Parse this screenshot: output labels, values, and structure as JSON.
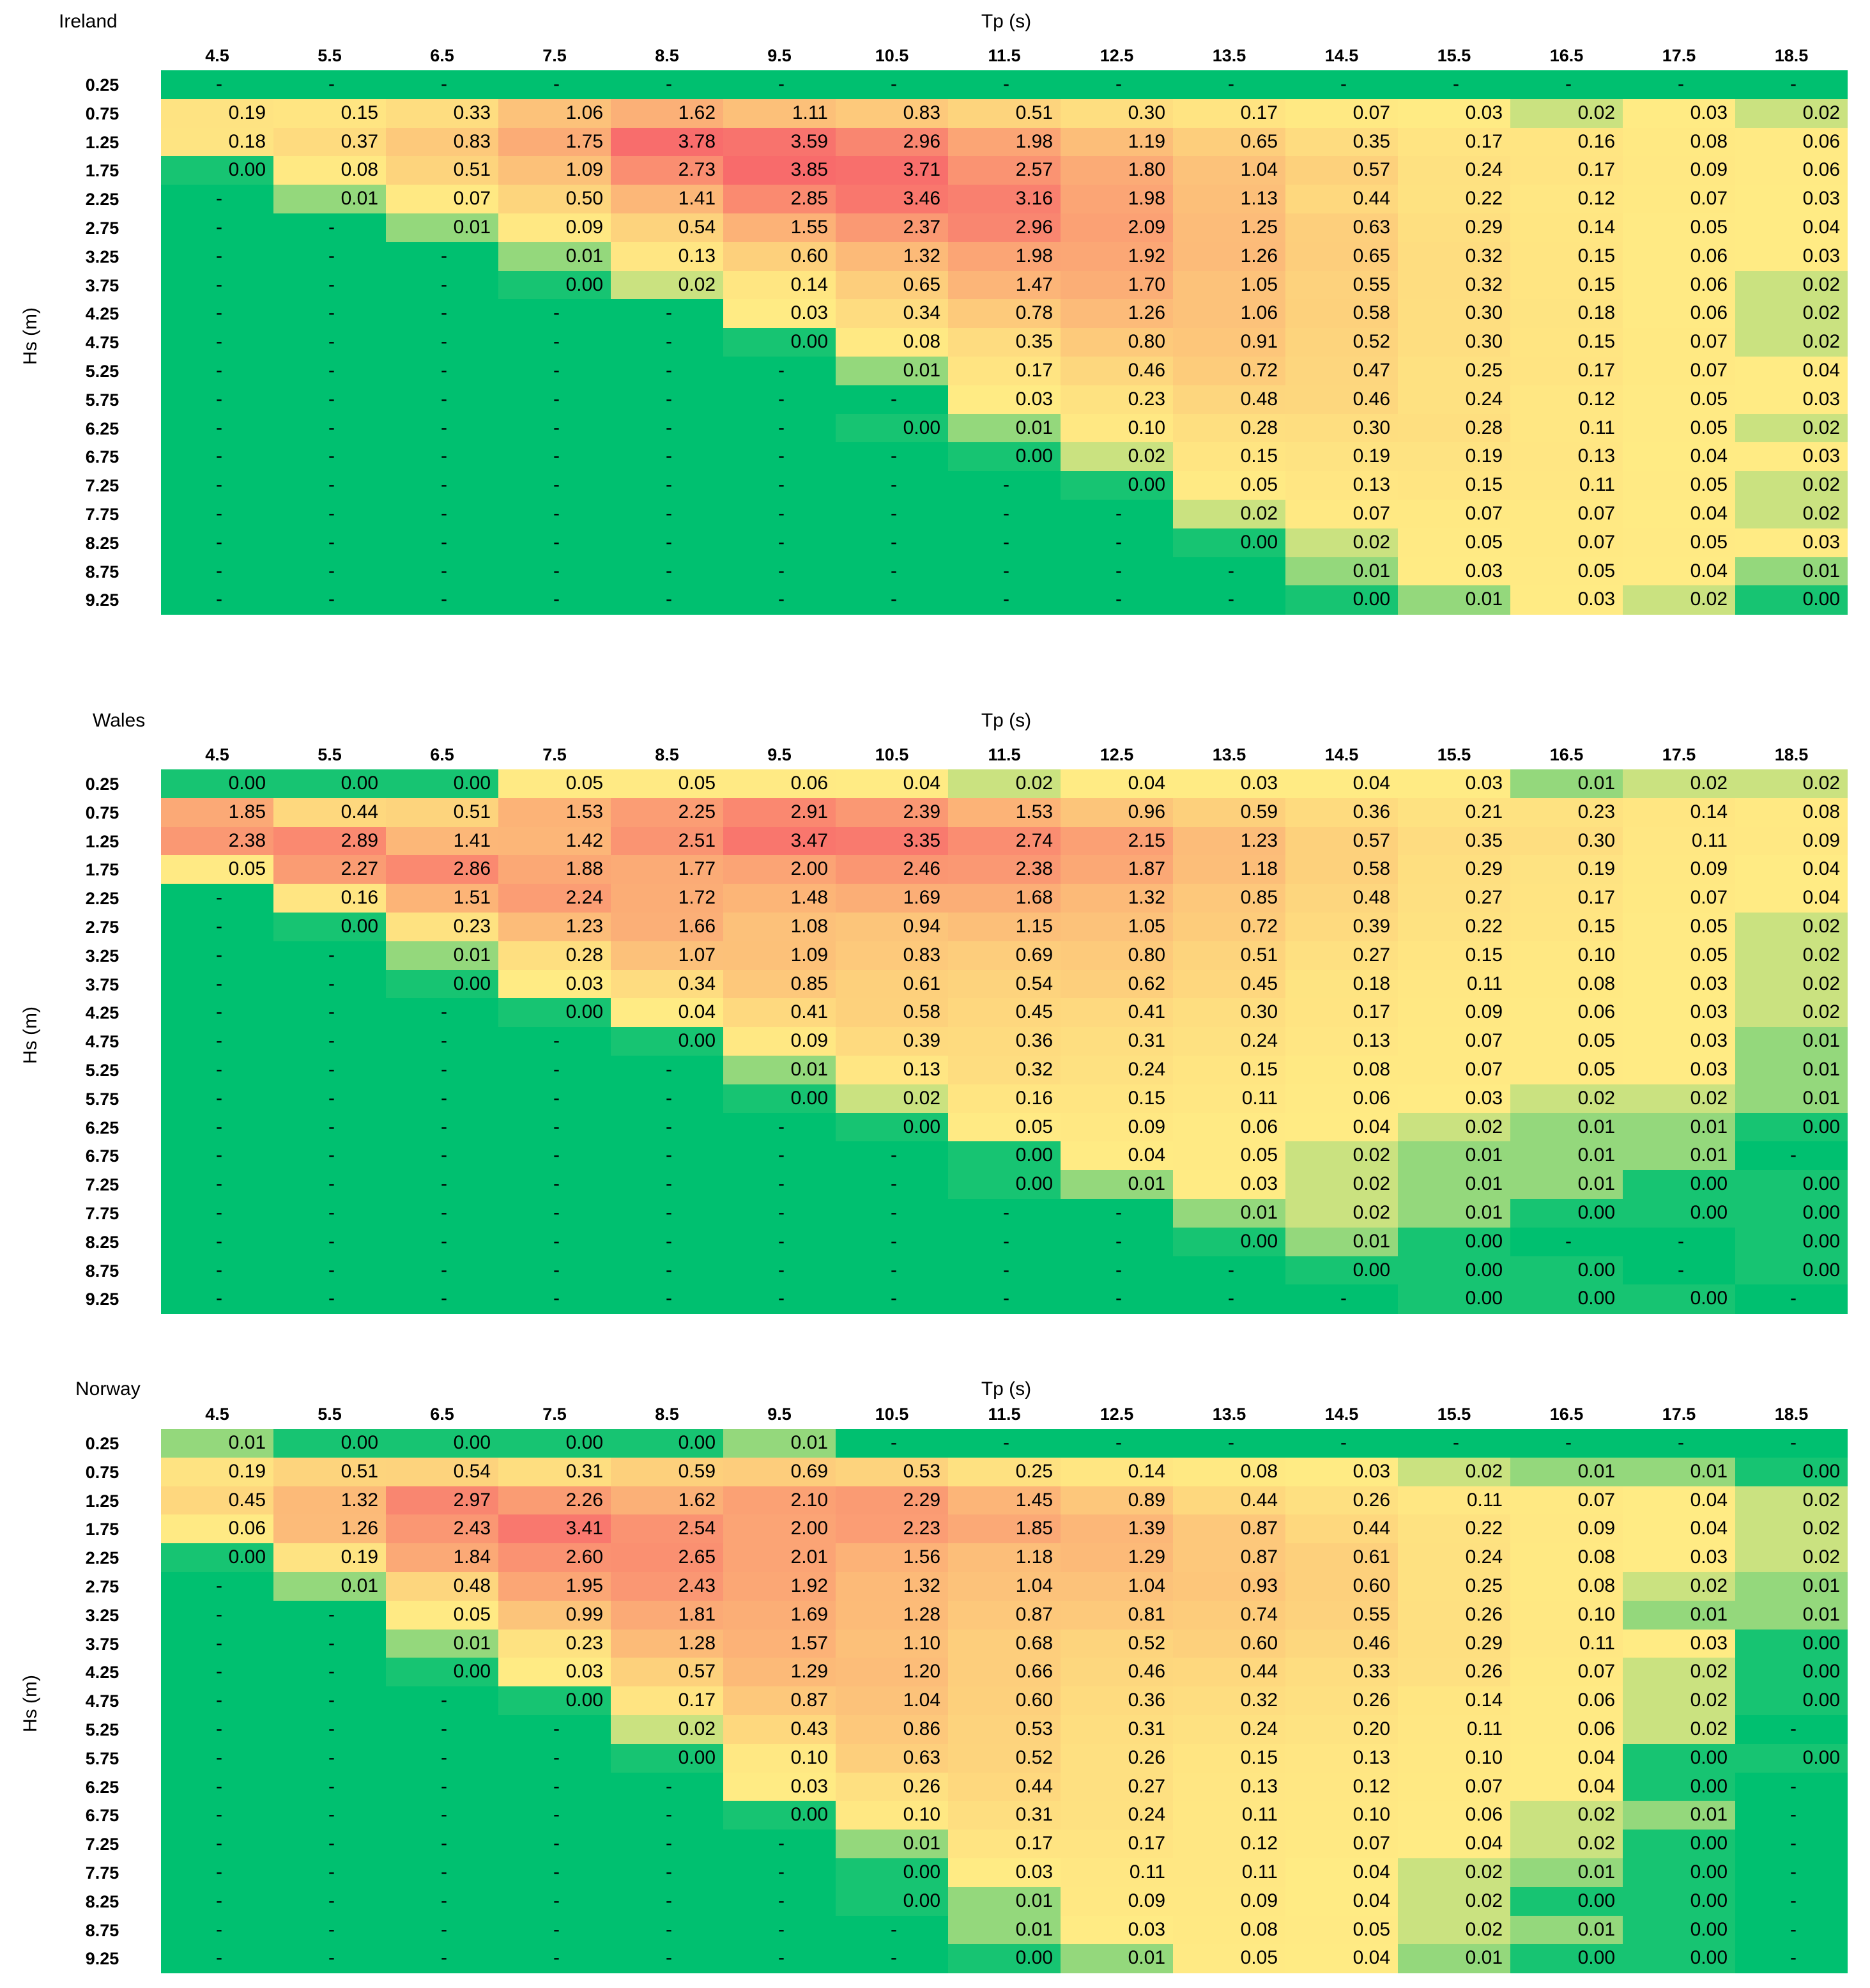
{
  "common": {
    "x_label": "Tp (s)",
    "y_label": "Hs (m)",
    "tp": [
      "4.5",
      "5.5",
      "6.5",
      "7.5",
      "8.5",
      "9.5",
      "10.5",
      "11.5",
      "12.5",
      "13.5",
      "14.5",
      "15.5",
      "16.5",
      "17.5",
      "18.5"
    ],
    "hs": [
      "0.25",
      "0.75",
      "1.25",
      "1.75",
      "2.25",
      "2.75",
      "3.25",
      "3.75",
      "4.25",
      "4.75",
      "5.25",
      "5.75",
      "6.25",
      "6.75",
      "7.25",
      "7.75",
      "8.25",
      "8.75",
      "9.25"
    ]
  },
  "colors": {
    "green": "#00c070",
    "yellow": "#ffeb84",
    "red": "#f8696b"
  },
  "chart_data": [
    {
      "type": "heatmap",
      "title": "Ireland",
      "xlabel": "Tp (s)",
      "ylabel": "Hs (m)",
      "rows": [
        [
          "-",
          "-",
          "-",
          "-",
          "-",
          "-",
          "-",
          "-",
          "-",
          "-",
          "-",
          "-",
          "-",
          "-",
          "-"
        ],
        [
          "0.19",
          "0.15",
          "0.33",
          "1.06",
          "1.62",
          "1.11",
          "0.83",
          "0.51",
          "0.30",
          "0.17",
          "0.07",
          "0.03",
          "0.02",
          "0.03",
          "0.02"
        ],
        [
          "0.18",
          "0.37",
          "0.83",
          "1.75",
          "3.78",
          "3.59",
          "2.96",
          "1.98",
          "1.19",
          "0.65",
          "0.35",
          "0.17",
          "0.16",
          "0.08",
          "0.06"
        ],
        [
          "0.00",
          "0.08",
          "0.51",
          "1.09",
          "2.73",
          "3.85",
          "3.71",
          "2.57",
          "1.80",
          "1.04",
          "0.57",
          "0.24",
          "0.17",
          "0.09",
          "0.06"
        ],
        [
          "-",
          "0.01",
          "0.07",
          "0.50",
          "1.41",
          "2.85",
          "3.46",
          "3.16",
          "1.98",
          "1.13",
          "0.44",
          "0.22",
          "0.12",
          "0.07",
          "0.03"
        ],
        [
          "-",
          "-",
          "0.01",
          "0.09",
          "0.54",
          "1.55",
          "2.37",
          "2.96",
          "2.09",
          "1.25",
          "0.63",
          "0.29",
          "0.14",
          "0.05",
          "0.04"
        ],
        [
          "-",
          "-",
          "-",
          "0.01",
          "0.13",
          "0.60",
          "1.32",
          "1.98",
          "1.92",
          "1.26",
          "0.65",
          "0.32",
          "0.15",
          "0.06",
          "0.03"
        ],
        [
          "-",
          "-",
          "-",
          "0.00",
          "0.02",
          "0.14",
          "0.65",
          "1.47",
          "1.70",
          "1.05",
          "0.55",
          "0.32",
          "0.15",
          "0.06",
          "0.02"
        ],
        [
          "-",
          "-",
          "-",
          "-",
          "-",
          "0.03",
          "0.34",
          "0.78",
          "1.26",
          "1.06",
          "0.58",
          "0.30",
          "0.18",
          "0.06",
          "0.02"
        ],
        [
          "-",
          "-",
          "-",
          "-",
          "-",
          "0.00",
          "0.08",
          "0.35",
          "0.80",
          "0.91",
          "0.52",
          "0.30",
          "0.15",
          "0.07",
          "0.02"
        ],
        [
          "-",
          "-",
          "-",
          "-",
          "-",
          "-",
          "0.01",
          "0.17",
          "0.46",
          "0.72",
          "0.47",
          "0.25",
          "0.17",
          "0.07",
          "0.04"
        ],
        [
          "-",
          "-",
          "-",
          "-",
          "-",
          "-",
          "-",
          "0.03",
          "0.23",
          "0.48",
          "0.46",
          "0.24",
          "0.12",
          "0.05",
          "0.03"
        ],
        [
          "-",
          "-",
          "-",
          "-",
          "-",
          "-",
          "0.00",
          "0.01",
          "0.10",
          "0.28",
          "0.30",
          "0.28",
          "0.11",
          "0.05",
          "0.02"
        ],
        [
          "-",
          "-",
          "-",
          "-",
          "-",
          "-",
          "-",
          "0.00",
          "0.02",
          "0.15",
          "0.19",
          "0.19",
          "0.13",
          "0.04",
          "0.03"
        ],
        [
          "-",
          "-",
          "-",
          "-",
          "-",
          "-",
          "-",
          "-",
          "0.00",
          "0.05",
          "0.13",
          "0.15",
          "0.11",
          "0.05",
          "0.02"
        ],
        [
          "-",
          "-",
          "-",
          "-",
          "-",
          "-",
          "-",
          "-",
          "-",
          "0.02",
          "0.07",
          "0.07",
          "0.07",
          "0.04",
          "0.02"
        ],
        [
          "-",
          "-",
          "-",
          "-",
          "-",
          "-",
          "-",
          "-",
          "-",
          "0.00",
          "0.02",
          "0.05",
          "0.07",
          "0.05",
          "0.03"
        ],
        [
          "-",
          "-",
          "-",
          "-",
          "-",
          "-",
          "-",
          "-",
          "-",
          "-",
          "0.01",
          "0.03",
          "0.05",
          "0.04",
          "0.01"
        ],
        [
          "-",
          "-",
          "-",
          "-",
          "-",
          "-",
          "-",
          "-",
          "-",
          "-",
          "0.00",
          "0.01",
          "0.03",
          "0.02",
          "0.00"
        ]
      ]
    },
    {
      "type": "heatmap",
      "title": "Wales",
      "xlabel": "Tp (s)",
      "ylabel": "Hs (m)",
      "rows": [
        [
          "0.00",
          "0.00",
          "0.00",
          "0.05",
          "0.05",
          "0.06",
          "0.04",
          "0.02",
          "0.04",
          "0.03",
          "0.04",
          "0.03",
          "0.01",
          "0.02",
          "0.02"
        ],
        [
          "1.85",
          "0.44",
          "0.51",
          "1.53",
          "2.25",
          "2.91",
          "2.39",
          "1.53",
          "0.96",
          "0.59",
          "0.36",
          "0.21",
          "0.23",
          "0.14",
          "0.08"
        ],
        [
          "2.38",
          "2.89",
          "1.41",
          "1.42",
          "2.51",
          "3.47",
          "3.35",
          "2.74",
          "2.15",
          "1.23",
          "0.57",
          "0.35",
          "0.30",
          "0.11",
          "0.09"
        ],
        [
          "0.05",
          "2.27",
          "2.86",
          "1.88",
          "1.77",
          "2.00",
          "2.46",
          "2.38",
          "1.87",
          "1.18",
          "0.58",
          "0.29",
          "0.19",
          "0.09",
          "0.04"
        ],
        [
          "-",
          "0.16",
          "1.51",
          "2.24",
          "1.72",
          "1.48",
          "1.69",
          "1.68",
          "1.32",
          "0.85",
          "0.48",
          "0.27",
          "0.17",
          "0.07",
          "0.04"
        ],
        [
          "-",
          "0.00",
          "0.23",
          "1.23",
          "1.66",
          "1.08",
          "0.94",
          "1.15",
          "1.05",
          "0.72",
          "0.39",
          "0.22",
          "0.15",
          "0.05",
          "0.02"
        ],
        [
          "-",
          "-",
          "0.01",
          "0.28",
          "1.07",
          "1.09",
          "0.83",
          "0.69",
          "0.80",
          "0.51",
          "0.27",
          "0.15",
          "0.10",
          "0.05",
          "0.02"
        ],
        [
          "-",
          "-",
          "0.00",
          "0.03",
          "0.34",
          "0.85",
          "0.61",
          "0.54",
          "0.62",
          "0.45",
          "0.18",
          "0.11",
          "0.08",
          "0.03",
          "0.02"
        ],
        [
          "-",
          "-",
          "-",
          "0.00",
          "0.04",
          "0.41",
          "0.58",
          "0.45",
          "0.41",
          "0.30",
          "0.17",
          "0.09",
          "0.06",
          "0.03",
          "0.02"
        ],
        [
          "-",
          "-",
          "-",
          "-",
          "0.00",
          "0.09",
          "0.39",
          "0.36",
          "0.31",
          "0.24",
          "0.13",
          "0.07",
          "0.05",
          "0.03",
          "0.01"
        ],
        [
          "-",
          "-",
          "-",
          "-",
          "-",
          "0.01",
          "0.13",
          "0.32",
          "0.24",
          "0.15",
          "0.08",
          "0.07",
          "0.05",
          "0.03",
          "0.01"
        ],
        [
          "-",
          "-",
          "-",
          "-",
          "-",
          "0.00",
          "0.02",
          "0.16",
          "0.15",
          "0.11",
          "0.06",
          "0.03",
          "0.02",
          "0.02",
          "0.01"
        ],
        [
          "-",
          "-",
          "-",
          "-",
          "-",
          "-",
          "0.00",
          "0.05",
          "0.09",
          "0.06",
          "0.04",
          "0.02",
          "0.01",
          "0.01",
          "0.00"
        ],
        [
          "-",
          "-",
          "-",
          "-",
          "-",
          "-",
          "-",
          "0.00",
          "0.04",
          "0.05",
          "0.02",
          "0.01",
          "0.01",
          "0.01",
          "-"
        ],
        [
          "-",
          "-",
          "-",
          "-",
          "-",
          "-",
          "-",
          "0.00",
          "0.01",
          "0.03",
          "0.02",
          "0.01",
          "0.01",
          "0.00",
          "0.00"
        ],
        [
          "-",
          "-",
          "-",
          "-",
          "-",
          "-",
          "-",
          "-",
          "-",
          "0.01",
          "0.02",
          "0.01",
          "0.00",
          "0.00",
          "0.00"
        ],
        [
          "-",
          "-",
          "-",
          "-",
          "-",
          "-",
          "-",
          "-",
          "-",
          "0.00",
          "0.01",
          "0.00",
          "-",
          "-",
          "0.00"
        ],
        [
          "-",
          "-",
          "-",
          "-",
          "-",
          "-",
          "-",
          "-",
          "-",
          "-",
          "0.00",
          "0.00",
          "0.00",
          "-",
          "0.00"
        ],
        [
          "-",
          "-",
          "-",
          "-",
          "-",
          "-",
          "-",
          "-",
          "-",
          "-",
          "-",
          "0.00",
          "0.00",
          "0.00",
          "-"
        ]
      ]
    },
    {
      "type": "heatmap",
      "title": "Norway",
      "xlabel": "Tp (s)",
      "ylabel": "Hs (m)",
      "rows": [
        [
          "0.01",
          "0.00",
          "0.00",
          "0.00",
          "0.00",
          "0.01",
          "-",
          "-",
          "-",
          "-",
          "-",
          "-",
          "-",
          "-",
          "-"
        ],
        [
          "0.19",
          "0.51",
          "0.54",
          "0.31",
          "0.59",
          "0.69",
          "0.53",
          "0.25",
          "0.14",
          "0.08",
          "0.03",
          "0.02",
          "0.01",
          "0.01",
          "0.00"
        ],
        [
          "0.45",
          "1.32",
          "2.97",
          "2.26",
          "1.62",
          "2.10",
          "2.29",
          "1.45",
          "0.89",
          "0.44",
          "0.26",
          "0.11",
          "0.07",
          "0.04",
          "0.02"
        ],
        [
          "0.06",
          "1.26",
          "2.43",
          "3.41",
          "2.54",
          "2.00",
          "2.23",
          "1.85",
          "1.39",
          "0.87",
          "0.44",
          "0.22",
          "0.09",
          "0.04",
          "0.02"
        ],
        [
          "0.00",
          "0.19",
          "1.84",
          "2.60",
          "2.65",
          "2.01",
          "1.56",
          "1.18",
          "1.29",
          "0.87",
          "0.61",
          "0.24",
          "0.08",
          "0.03",
          "0.02"
        ],
        [
          "-",
          "0.01",
          "0.48",
          "1.95",
          "2.43",
          "1.92",
          "1.32",
          "1.04",
          "1.04",
          "0.93",
          "0.60",
          "0.25",
          "0.08",
          "0.02",
          "0.01"
        ],
        [
          "-",
          "-",
          "0.05",
          "0.99",
          "1.81",
          "1.69",
          "1.28",
          "0.87",
          "0.81",
          "0.74",
          "0.55",
          "0.26",
          "0.10",
          "0.01",
          "0.01"
        ],
        [
          "-",
          "-",
          "0.01",
          "0.23",
          "1.28",
          "1.57",
          "1.10",
          "0.68",
          "0.52",
          "0.60",
          "0.46",
          "0.29",
          "0.11",
          "0.03",
          "0.00"
        ],
        [
          "-",
          "-",
          "0.00",
          "0.03",
          "0.57",
          "1.29",
          "1.20",
          "0.66",
          "0.46",
          "0.44",
          "0.33",
          "0.26",
          "0.07",
          "0.02",
          "0.00"
        ],
        [
          "-",
          "-",
          "-",
          "0.00",
          "0.17",
          "0.87",
          "1.04",
          "0.60",
          "0.36",
          "0.32",
          "0.26",
          "0.14",
          "0.06",
          "0.02",
          "0.00"
        ],
        [
          "-",
          "-",
          "-",
          "-",
          "0.02",
          "0.43",
          "0.86",
          "0.53",
          "0.31",
          "0.24",
          "0.20",
          "0.11",
          "0.06",
          "0.02",
          "-"
        ],
        [
          "-",
          "-",
          "-",
          "-",
          "0.00",
          "0.10",
          "0.63",
          "0.52",
          "0.26",
          "0.15",
          "0.13",
          "0.10",
          "0.04",
          "0.00",
          "0.00"
        ],
        [
          "-",
          "-",
          "-",
          "-",
          "-",
          "0.03",
          "0.26",
          "0.44",
          "0.27",
          "0.13",
          "0.12",
          "0.07",
          "0.04",
          "0.00",
          "-"
        ],
        [
          "-",
          "-",
          "-",
          "-",
          "-",
          "0.00",
          "0.10",
          "0.31",
          "0.24",
          "0.11",
          "0.10",
          "0.06",
          "0.02",
          "0.01",
          "-"
        ],
        [
          "-",
          "-",
          "-",
          "-",
          "-",
          "-",
          "0.01",
          "0.17",
          "0.17",
          "0.12",
          "0.07",
          "0.04",
          "0.02",
          "0.00",
          "-"
        ],
        [
          "-",
          "-",
          "-",
          "-",
          "-",
          "-",
          "0.00",
          "0.03",
          "0.11",
          "0.11",
          "0.04",
          "0.02",
          "0.01",
          "0.00",
          "-"
        ],
        [
          "-",
          "-",
          "-",
          "-",
          "-",
          "-",
          "0.00",
          "0.01",
          "0.09",
          "0.09",
          "0.04",
          "0.02",
          "0.00",
          "0.00",
          "-"
        ],
        [
          "-",
          "-",
          "-",
          "-",
          "-",
          "-",
          "-",
          "0.01",
          "0.03",
          "0.08",
          "0.05",
          "0.02",
          "0.01",
          "0.00",
          "-"
        ],
        [
          "-",
          "-",
          "-",
          "-",
          "-",
          "-",
          "-",
          "0.00",
          "0.01",
          "0.05",
          "0.04",
          "0.01",
          "0.00",
          "0.00",
          "-"
        ]
      ]
    }
  ]
}
